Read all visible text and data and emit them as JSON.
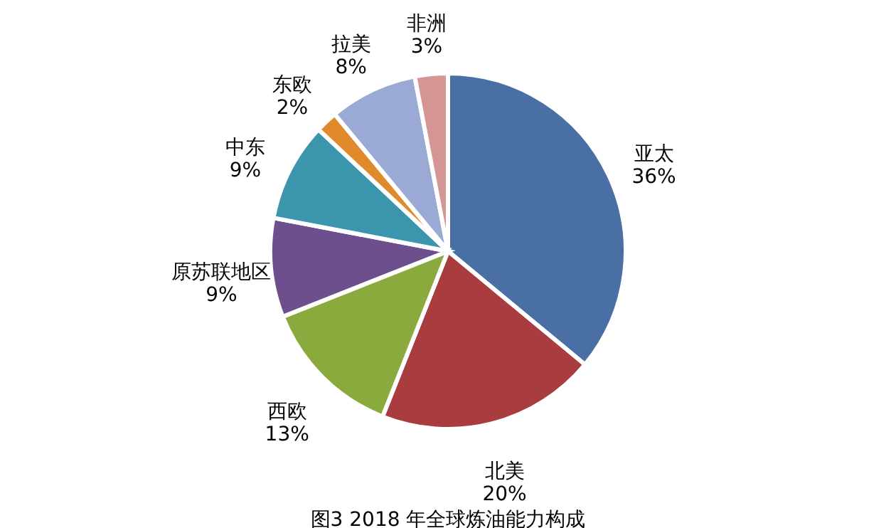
{
  "chart_data": {
    "type": "pie",
    "title": "图3  2018 年全球炼油能力构成",
    "categories": [
      "亚太",
      "北美",
      "西欧",
      "原苏联地区",
      "中东",
      "东欧",
      "拉美",
      "非洲"
    ],
    "values": [
      36,
      20,
      13,
      9,
      9,
      2,
      8,
      3
    ],
    "colors": [
      "#4a6fa5",
      "#a83c3e",
      "#8aaa3e",
      "#6c4f8c",
      "#3a95ad",
      "#e08a2c",
      "#9aaad4",
      "#d69595"
    ],
    "value_labels": [
      "36%",
      "20%",
      "13%",
      "9%",
      "9%",
      "2%",
      "8%",
      "3%"
    ],
    "legend": false
  }
}
